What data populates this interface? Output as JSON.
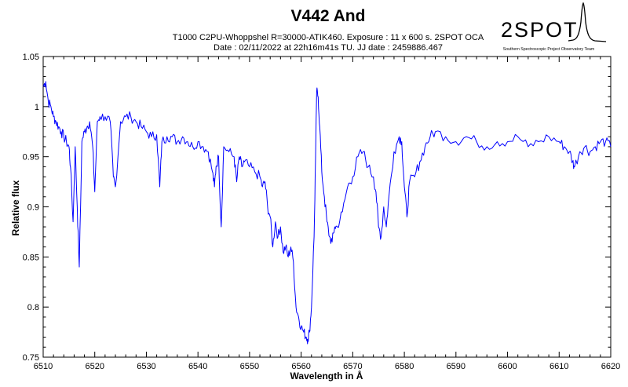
{
  "header": {
    "title": "V442 And",
    "subtitle_line1": "T1000 C2PU-Whoppshel R=30000-ATIK460. Exposure : 11 x 600 s. 2SPOT OCA",
    "subtitle_line2": "Date : 02/11/2022 at 22h16m41s TU. JJ date : 2459886.467"
  },
  "logo": {
    "name": "2SPOT",
    "tagline": "Southern Spectroscopic Project Observatory Team"
  },
  "chart_data": {
    "type": "line",
    "title": "V442 And",
    "xlabel": "Wavelength in Å",
    "ylabel": "Relative flux",
    "xlim": [
      6510,
      6620
    ],
    "ylim": [
      0.75,
      1.05
    ],
    "xticks": [
      6510,
      6520,
      6530,
      6540,
      6550,
      6560,
      6570,
      6580,
      6590,
      6600,
      6610,
      6620
    ],
    "yticks": [
      0.75,
      0.8,
      0.85,
      0.9,
      0.95,
      1,
      1.05
    ],
    "grid": false,
    "line_color": "#0000ff",
    "series": [
      {
        "x": [
          6510.0,
          6510.5,
          6511.0,
          6511.5,
          6512.0,
          6512.5,
          6513.0,
          6513.5,
          6514.0,
          6514.5,
          6515.0,
          6515.3,
          6515.8,
          6516.2,
          6516.6,
          6517.0,
          6517.5,
          6518.0,
          6518.5,
          6519.0,
          6519.6,
          6520.0,
          6520.5,
          6521.0,
          6522.0,
          6523.0,
          6523.6,
          6524.0,
          6525.0,
          6526.0,
          6527.0,
          6528.0,
          6529.0,
          6530.0,
          6531.0,
          6532.0,
          6532.6,
          6533.0,
          6534.0,
          6535.0,
          6536.0,
          6537.0,
          6538.0,
          6539.0,
          6540.0,
          6541.0,
          6542.0,
          6542.8,
          6543.2,
          6543.5,
          6544.0,
          6544.5,
          6545.0,
          6546.0,
          6547.0,
          6547.5,
          6548.0,
          6548.5,
          6549.0,
          6550.0,
          6551.0,
          6552.0,
          6552.5,
          6553.0,
          6553.5,
          6554.0,
          6554.5,
          6555.0,
          6555.5,
          6556.0,
          6556.5,
          6557.0,
          6557.5,
          6558.0,
          6558.5,
          6559.0,
          6559.5,
          6560.0,
          6560.5,
          6561.0,
          6561.3,
          6561.6,
          6562.0,
          6562.5,
          6562.8,
          6563.0,
          6563.3,
          6563.6,
          6564.0,
          6564.5,
          6565.0,
          6565.5,
          6566.0,
          6566.5,
          6567.0,
          6568.0,
          6569.0,
          6570.0,
          6571.0,
          6572.0,
          6573.0,
          6574.0,
          6574.5,
          6575.0,
          6575.5,
          6576.0,
          6576.5,
          6577.0,
          6578.0,
          6579.0,
          6579.5,
          6580.0,
          6580.5,
          6581.0,
          6582.0,
          6583.0,
          6584.0,
          6585.0,
          6586.0,
          6588.0,
          6590.0,
          6592.0,
          6594.0,
          6596.0,
          6598.0,
          6600.0,
          6602.0,
          6604.0,
          6606.0,
          6608.0,
          6610.0,
          6611.0,
          6612.0,
          6612.6,
          6613.0,
          6614.0,
          6615.0,
          6616.0,
          6617.0,
          6618.0,
          6619.0,
          6620.0
        ],
        "y": [
          1.02,
          1.025,
          1.005,
          1.0,
          0.99,
          0.985,
          0.98,
          0.975,
          0.97,
          0.965,
          0.96,
          0.94,
          0.885,
          0.96,
          0.9,
          0.84,
          0.965,
          0.975,
          0.98,
          0.985,
          0.96,
          0.915,
          0.985,
          0.99,
          0.99,
          0.985,
          0.93,
          0.92,
          0.985,
          0.99,
          0.99,
          0.985,
          0.98,
          0.975,
          0.97,
          0.972,
          0.92,
          0.965,
          0.97,
          0.97,
          0.965,
          0.97,
          0.965,
          0.96,
          0.965,
          0.96,
          0.955,
          0.935,
          0.92,
          0.94,
          0.95,
          0.88,
          0.96,
          0.955,
          0.95,
          0.925,
          0.95,
          0.94,
          0.945,
          0.94,
          0.935,
          0.93,
          0.92,
          0.925,
          0.9,
          0.89,
          0.86,
          0.885,
          0.87,
          0.88,
          0.855,
          0.86,
          0.85,
          0.86,
          0.845,
          0.8,
          0.79,
          0.78,
          0.775,
          0.77,
          0.768,
          0.775,
          0.8,
          0.87,
          0.95,
          1.015,
          1.01,
          0.98,
          0.935,
          0.91,
          0.885,
          0.87,
          0.865,
          0.88,
          0.88,
          0.895,
          0.92,
          0.93,
          0.95,
          0.955,
          0.94,
          0.93,
          0.915,
          0.88,
          0.87,
          0.9,
          0.88,
          0.91,
          0.955,
          0.97,
          0.965,
          0.92,
          0.89,
          0.925,
          0.93,
          0.945,
          0.96,
          0.97,
          0.975,
          0.97,
          0.965,
          0.97,
          0.965,
          0.96,
          0.965,
          0.965,
          0.97,
          0.96,
          0.965,
          0.97,
          0.965,
          0.96,
          0.955,
          0.945,
          0.94,
          0.955,
          0.96,
          0.955,
          0.96,
          0.965,
          0.965,
          0.96
        ]
      }
    ]
  }
}
